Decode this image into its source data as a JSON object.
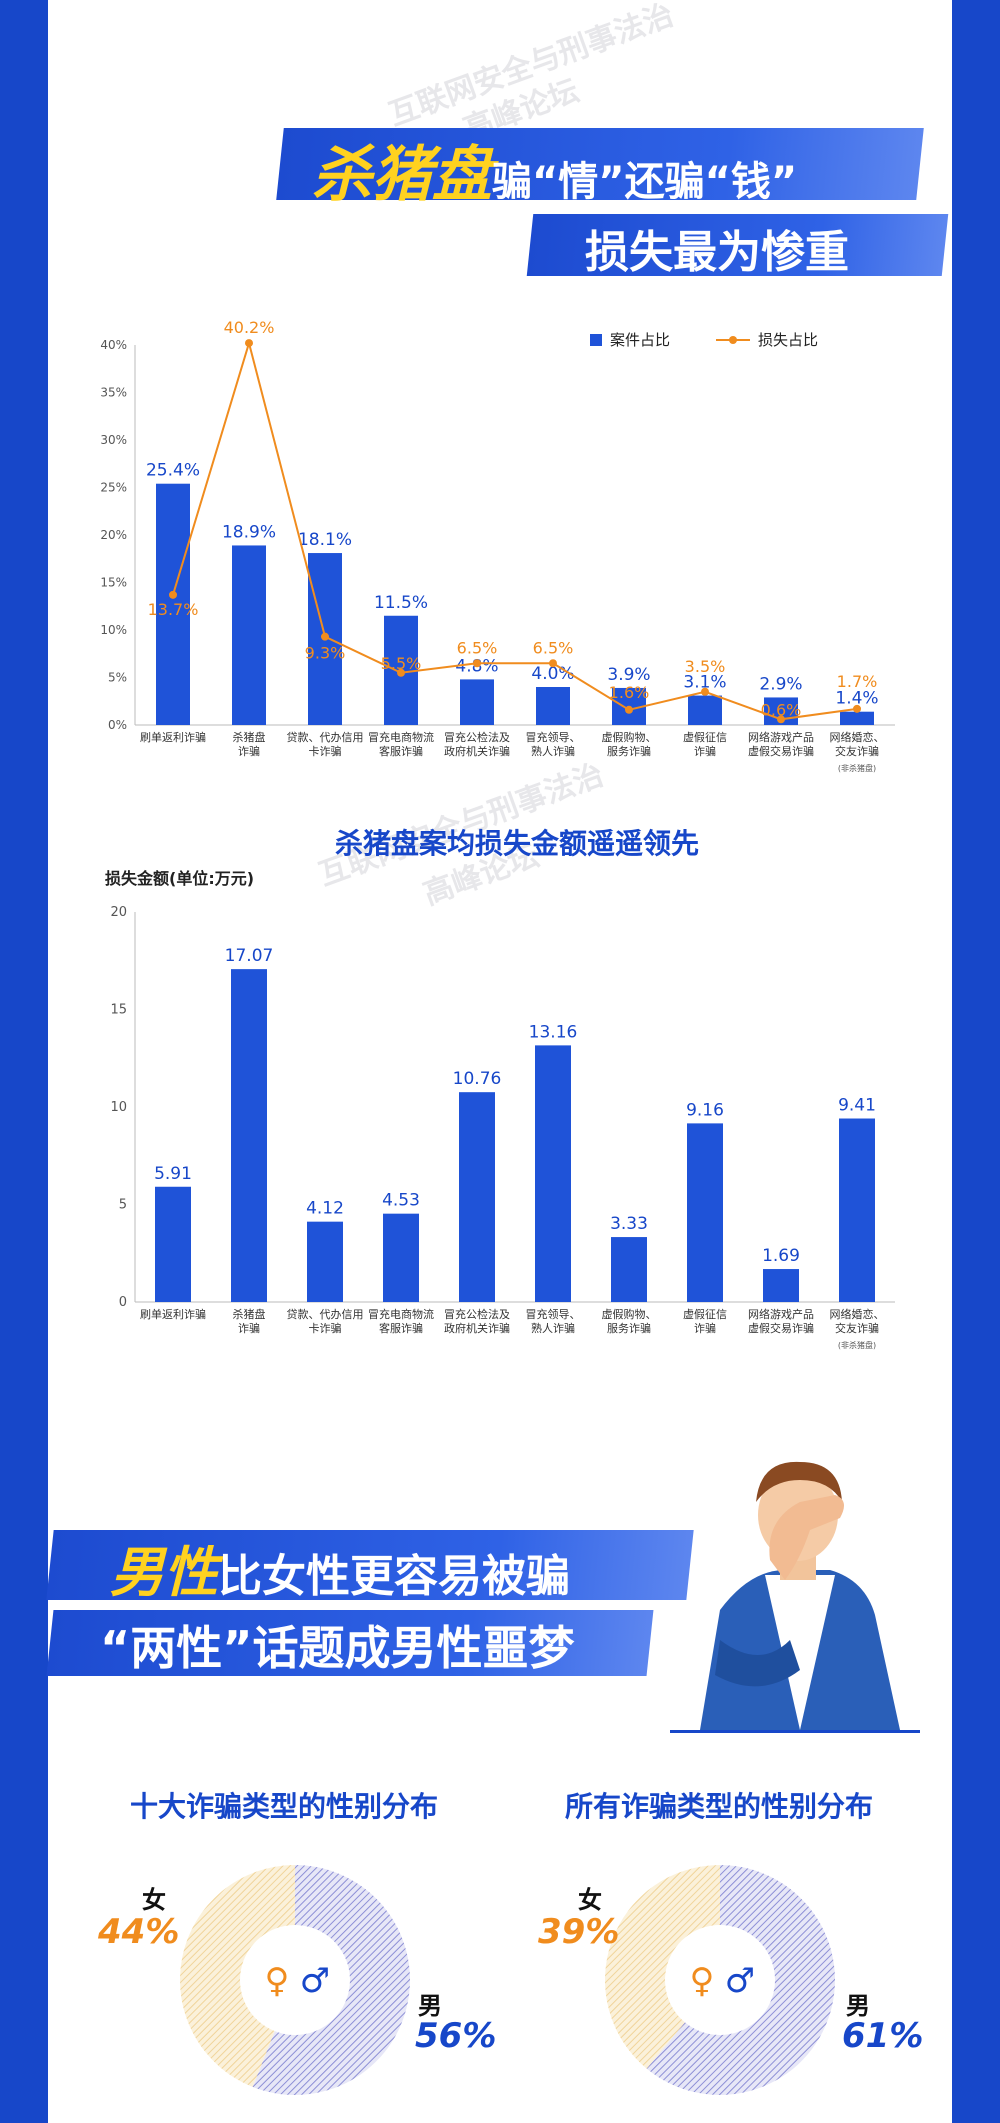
{
  "banner1": {
    "highlight": "杀猪盘",
    "rest": "骗“情”还骗“钱”",
    "line2": "损失最为惨重"
  },
  "watermark": [
    "互联网安全与刑事法治",
    "高峰论坛"
  ],
  "colors": {
    "blue": "#1f53d8",
    "orange": "#f08c1e",
    "dark_blue": "#1747c9",
    "female": "#f0d49a",
    "male": "#8d8fd6"
  },
  "chart_data": [
    {
      "type": "bar",
      "categories": [
        "刷单返利诈骗",
        "杀猪盘\n诈骗",
        "贷款、代办信用\n卡诈骗",
        "冒充电商物流\n客服诈骗",
        "冒充公检法及\n政府机关诈骗",
        "冒充领导、\n熟人诈骗",
        "虚假购物、\n服务诈骗",
        "虚假征信\n诈骗",
        "网络游戏产品\n虚假交易诈骗",
        "网络婚恋、\n交友诈骗"
      ],
      "category_note": "(非杀猪盘)",
      "series": [
        {
          "name": "案件占比",
          "kind": "bar",
          "values": [
            25.4,
            18.9,
            18.1,
            11.5,
            4.8,
            4.0,
            3.9,
            3.1,
            2.9,
            1.4
          ],
          "labels": [
            "25.4%",
            "18.9%",
            "18.1%",
            "11.5%",
            "4.8%",
            "4.0%",
            "3.9%",
            "3.1%",
            "2.9%",
            "1.4%"
          ]
        },
        {
          "name": "损失占比",
          "kind": "line",
          "values": [
            13.7,
            40.2,
            9.3,
            5.5,
            6.5,
            6.5,
            1.6,
            3.5,
            0.6,
            1.7
          ],
          "labels": [
            "13.7%",
            "40.2%",
            "9.3%",
            "5.5%",
            "6.5%",
            "6.5%",
            "1.6%",
            "3.5%",
            "0.6%",
            "1.7%"
          ]
        }
      ],
      "ylim": [
        0,
        40
      ],
      "yticks": [
        "0%",
        "5%",
        "10%",
        "15%",
        "20%",
        "25%",
        "30%",
        "35%",
        "40%"
      ],
      "legend": "top-right"
    },
    {
      "type": "bar",
      "title": "杀猪盘案均损失金额遥遥领先",
      "ylabel": "损失金额(单位:万元)",
      "categories": [
        "刷单返利诈骗",
        "杀猪盘\n诈骗",
        "贷款、代办信用\n卡诈骗",
        "冒充电商物流\n客服诈骗",
        "冒充公检法及\n政府机关诈骗",
        "冒充领导、\n熟人诈骗",
        "虚假购物、\n服务诈骗",
        "虚假征信\n诈骗",
        "网络游戏产品\n虚假交易诈骗",
        "网络婚恋、\n交友诈骗"
      ],
      "category_note": "(非杀猪盘)",
      "values": [
        5.91,
        17.07,
        4.12,
        4.53,
        10.76,
        13.16,
        3.33,
        9.16,
        1.69,
        9.41
      ],
      "labels": [
        "5.91",
        "17.07",
        "4.12",
        "4.53",
        "10.76",
        "13.16",
        "3.33",
        "9.16",
        "1.69",
        "9.41"
      ],
      "ylim": [
        0,
        20
      ],
      "yticks": [
        "0",
        "5",
        "10",
        "15",
        "20"
      ]
    },
    {
      "type": "pie",
      "title": "十大诈骗类型的性别分布",
      "slices": [
        {
          "name": "女",
          "value": 44,
          "label": "44%"
        },
        {
          "name": "男",
          "value": 56,
          "label": "56%"
        }
      ]
    },
    {
      "type": "pie",
      "title": "所有诈骗类型的性别分布",
      "slices": [
        {
          "name": "女",
          "value": 39,
          "label": "39%"
        },
        {
          "name": "男",
          "value": 61,
          "label": "61%"
        }
      ]
    }
  ],
  "banner2": {
    "highlight": "男性",
    "rest": "比女性更容易被骗",
    "line2": "“两性”话题成男性噩梦"
  },
  "gender_symbols": {
    "female": "♀",
    "male": "♂"
  }
}
